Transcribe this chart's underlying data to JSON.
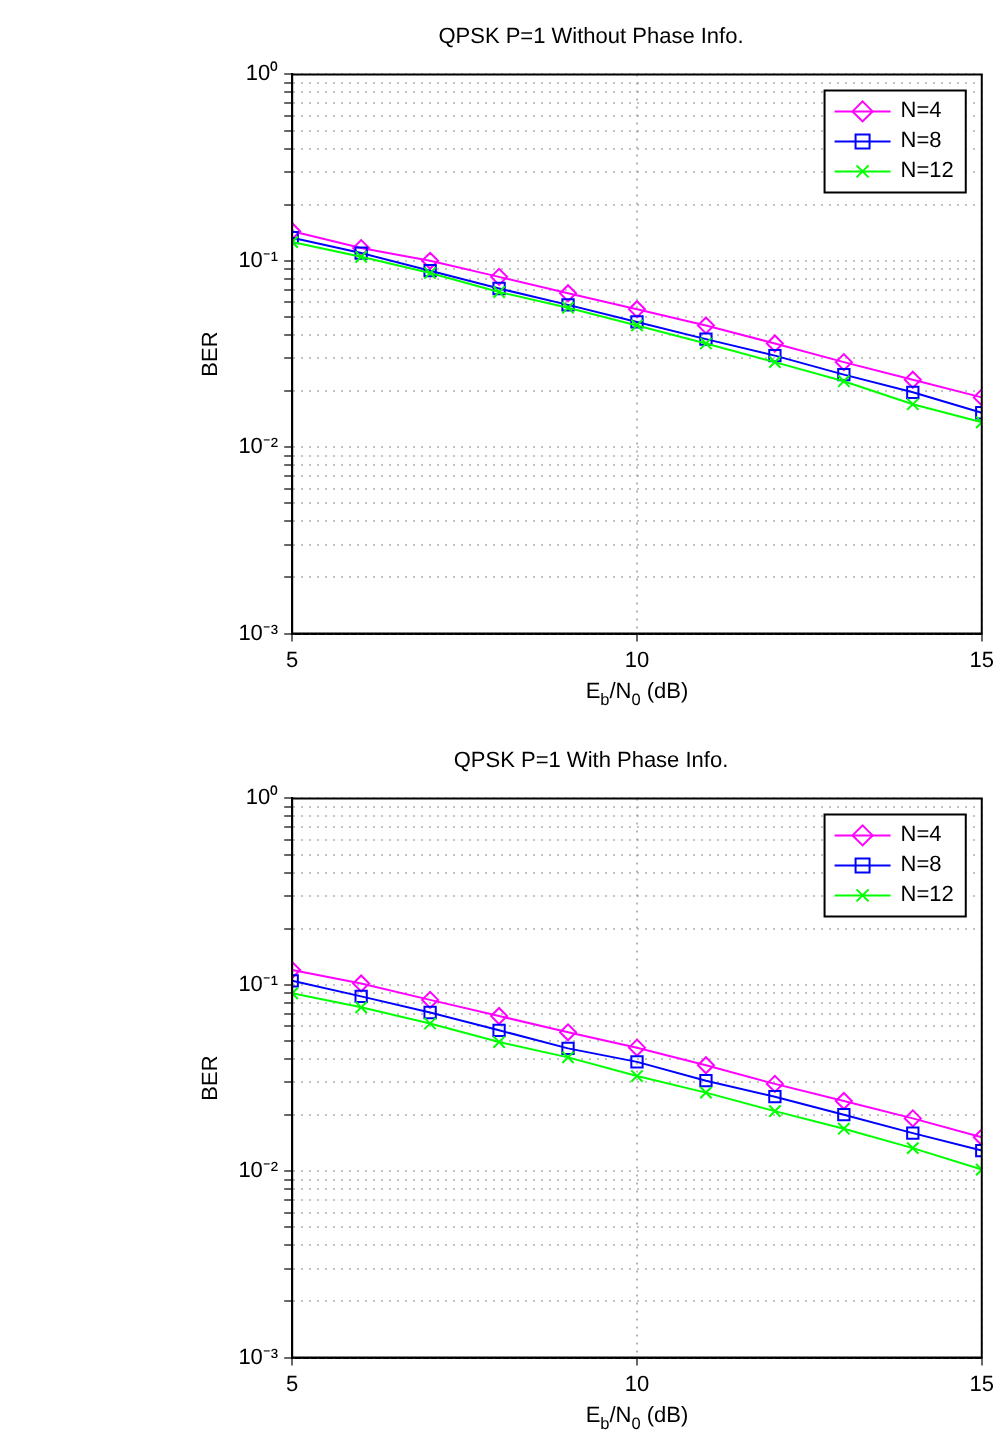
{
  "chart_data": [
    {
      "type": "line",
      "title": "QPSK P=1 Without Phase Info.",
      "xlabel": "E$_{b}$/N$_{0}$ (dB)",
      "ylabel": "BER",
      "x": [
        5,
        6,
        7,
        8,
        9,
        10,
        11,
        12,
        13,
        14,
        15
      ],
      "series": [
        {
          "name": "N=4",
          "color": "#ff00ff",
          "marker": "diamond",
          "values": [
            0.144,
            0.117,
            0.1,
            0.082,
            0.067,
            0.055,
            0.045,
            0.036,
            0.0286,
            0.023,
            0.0185
          ]
        },
        {
          "name": "N=8",
          "color": "#0000ff",
          "marker": "square",
          "values": [
            0.133,
            0.11,
            0.0885,
            0.071,
            0.058,
            0.047,
            0.038,
            0.031,
            0.0245,
            0.0197,
            0.0153
          ]
        },
        {
          "name": "N=12",
          "color": "#00ff00",
          "marker": "cross",
          "values": [
            0.126,
            0.105,
            0.086,
            0.068,
            0.056,
            0.045,
            0.036,
            0.0286,
            0.0226,
            0.017,
            0.0136
          ]
        }
      ],
      "log": "y",
      "xlim": [
        5,
        15
      ],
      "xticks": [
        5,
        10,
        15
      ],
      "ylim": [
        0.001,
        1
      ],
      "yticks": [
        {
          "value": 0.001,
          "label": "10⁻³"
        },
        {
          "value": 0.01,
          "label": "10⁻²"
        },
        {
          "value": 0.1,
          "label": "10⁻¹"
        },
        {
          "value": 1,
          "label": "10⁰"
        }
      ],
      "grid": true,
      "legend": "top right",
      "line_style": "solid"
    },
    {
      "type": "line",
      "title": "QPSK P=1 With Phase Info.",
      "xlabel": "E$_{b}$/N$_{0}$ (dB)",
      "ylabel": "BER",
      "x": [
        5,
        6,
        7,
        8,
        9,
        10,
        11,
        12,
        13,
        14,
        15
      ],
      "series": [
        {
          "name": "N=4",
          "color": "#ff00ff",
          "marker": "diamond",
          "values": [
            0.12,
            0.1017,
            0.083,
            0.068,
            0.0556,
            0.046,
            0.037,
            0.0294,
            0.0238,
            0.0192,
            0.0152
          ]
        },
        {
          "name": "N=8",
          "color": "#0000ff",
          "marker": "square",
          "values": [
            0.105,
            0.0867,
            0.071,
            0.057,
            0.0456,
            0.0386,
            0.0306,
            0.0251,
            0.0201,
            0.016,
            0.0129
          ]
        },
        {
          "name": "N=12",
          "color": "#00ff00",
          "marker": "cross",
          "values": [
            0.09,
            0.0757,
            0.062,
            0.0493,
            0.0408,
            0.0324,
            0.0264,
            0.021,
            0.0169,
            0.0133,
            0.0102
          ]
        }
      ],
      "log": "y",
      "xlim": [
        5,
        15
      ],
      "xticks": [
        5,
        10,
        15
      ],
      "ylim": [
        0.001,
        1
      ],
      "yticks": [
        {
          "value": 0.001,
          "label": "10⁻³"
        },
        {
          "value": 0.01,
          "label": "10⁻²"
        },
        {
          "value": 0.1,
          "label": "10⁻¹"
        },
        {
          "value": 1,
          "label": "10⁰"
        }
      ],
      "grid": true,
      "legend": "top right",
      "line_style": "solid"
    }
  ]
}
